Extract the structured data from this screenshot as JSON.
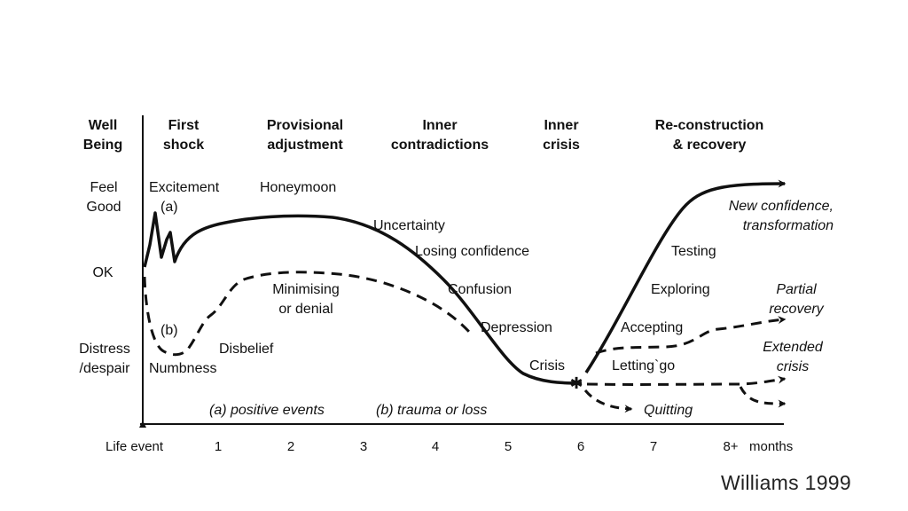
{
  "title": {
    "l1": "Well",
    "l2": "Being"
  },
  "phases": [
    {
      "l1": "First",
      "l2": "shock"
    },
    {
      "l1": "Provisional",
      "l2": "adjustment"
    },
    {
      "l1": "Inner",
      "l2": "contradictions"
    },
    {
      "l1": "Inner",
      "l2": "crisis"
    },
    {
      "l1": "Re-construction",
      "l2": "& recovery"
    }
  ],
  "y_labels": {
    "feel_good": {
      "l1": "Feel",
      "l2": "Good"
    },
    "ok": "OK",
    "distress": {
      "l1": "Distress",
      "l2": "/despair"
    }
  },
  "curve_labels": {
    "excitement": "Excitement",
    "a_marker": "(a)",
    "honeymoon": "Honeymoon",
    "uncertainty": "Uncertainty",
    "losing_confidence": "Losing confidence",
    "confusion": "Confusion",
    "depression": "Depression",
    "crisis": "Crisis",
    "b_marker": "(b)",
    "numbness": "Numbness",
    "disbelief": "Disbelief",
    "minimising": {
      "l1": "Minimising",
      "l2": "or denial"
    },
    "testing": "Testing",
    "exploring": "Exploring",
    "accepting": "Accepting",
    "letting_go": "Letting`go",
    "quitting": "Quitting",
    "new_confidence": {
      "l1": "New confidence,",
      "l2": "transformation"
    },
    "partial_recovery": {
      "l1": "Partial",
      "l2": "recovery"
    },
    "extended_crisis": {
      "l1": "Extended",
      "l2": "crisis"
    }
  },
  "legend": {
    "a": "(a) positive events",
    "b": "(b) trauma or loss"
  },
  "x_axis": {
    "start_label": "Life event",
    "ticks": [
      "1",
      "2",
      "3",
      "4",
      "5",
      "6",
      "7",
      "8+"
    ],
    "unit": "months"
  },
  "citation": "Williams  1999"
}
